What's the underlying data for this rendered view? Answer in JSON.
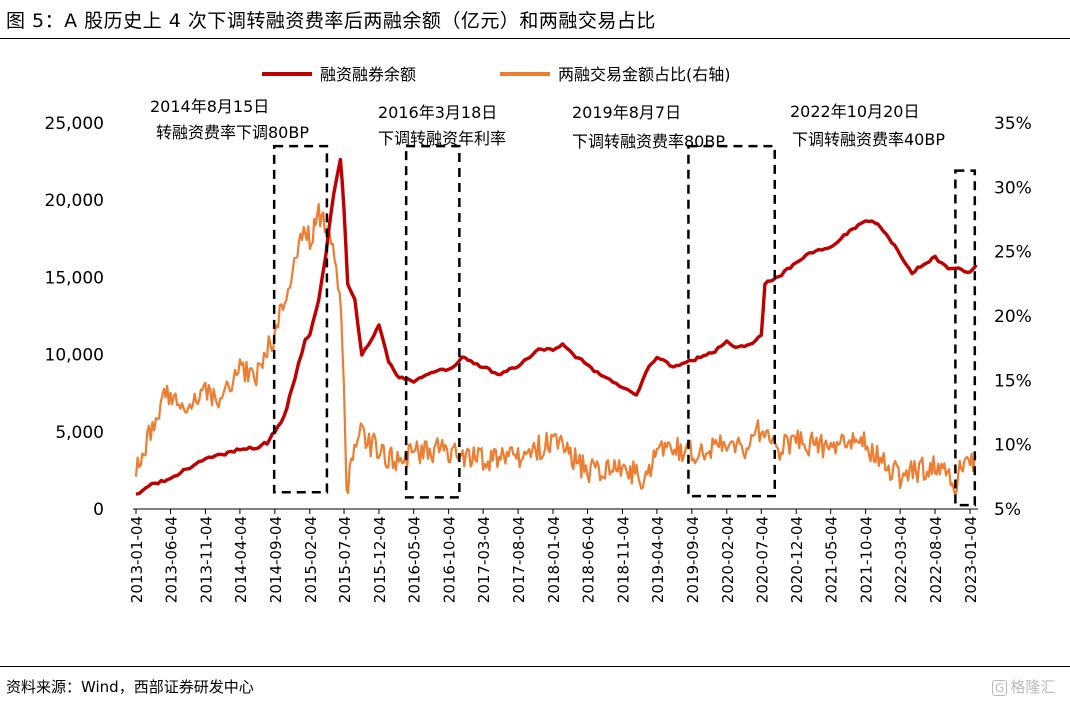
{
  "title": "图 5：A 股历史上 4 次下调转融资费率后两融余额（亿元）和两融交易占比",
  "source": "资料来源：Wind，西部证券研发中心",
  "watermark": "格隆汇",
  "colors": {
    "financing": "#c00000",
    "share": "#ed7d31"
  },
  "chart_data": {
    "type": "line",
    "legend": {
      "position": "top",
      "entries": [
        "融资融券余额",
        "两融交易金额占比(右轴)"
      ]
    },
    "x_ticks": [
      "2013-01-04",
      "2013-06-04",
      "2013-11-04",
      "2014-04-04",
      "2014-09-04",
      "2015-02-04",
      "2015-07-04",
      "2015-12-04",
      "2016-05-04",
      "2016-10-04",
      "2017-03-04",
      "2017-08-04",
      "2018-01-04",
      "2018-06-04",
      "2018-11-04",
      "2019-04-04",
      "2019-09-04",
      "2020-02-04",
      "2020-07-04",
      "2020-12-04",
      "2021-05-04",
      "2021-10-04",
      "2022-03-04",
      "2022-08-04",
      "2023-01-04"
    ],
    "y_left": {
      "min": 0,
      "max": 25000,
      "ticks": [
        "0",
        "5,000",
        "10,000",
        "15,000",
        "20,000",
        "25,000"
      ]
    },
    "y_right": {
      "min": 5,
      "max": 35,
      "ticks": [
        "5%",
        "10%",
        "15%",
        "20%",
        "25%",
        "30%",
        "35%"
      ]
    },
    "grid": false,
    "annotations": [
      {
        "date_label": "2014年8月15日",
        "text": "转融资费率下调80BP",
        "window": [
          "2014-09-01",
          "2015-04-20"
        ],
        "share_range": [
          6.3,
          33.2
        ]
      },
      {
        "date_label": "2016年3月18日",
        "text": "下调转融资年利率",
        "window": [
          "2016-04-01",
          "2016-11-20"
        ],
        "share_range": [
          5.9,
          33.2
        ]
      },
      {
        "date_label": "2019年8月7日",
        "text": "下调转融资费率80BP",
        "window": [
          "2019-08-20",
          "2020-09-01"
        ],
        "share_range": [
          6.0,
          33.2
        ]
      },
      {
        "date_label": "2022年10月20日",
        "text": "下调转融资费率40BP",
        "window": [
          "2022-11-01",
          "2023-01-25"
        ],
        "share_range": [
          5.3,
          31.3
        ]
      }
    ],
    "series": [
      {
        "name": "融资融券余额",
        "axis": "left",
        "points": [
          [
            "2013-01-04",
            900
          ],
          [
            "2013-03-01",
            1500
          ],
          [
            "2013-06-04",
            2000
          ],
          [
            "2013-08-15",
            2600
          ],
          [
            "2013-11-04",
            3300
          ],
          [
            "2014-01-15",
            3500
          ],
          [
            "2014-04-04",
            3900
          ],
          [
            "2014-06-15",
            4000
          ],
          [
            "2014-08-01",
            4300
          ],
          [
            "2014-09-04",
            5000
          ],
          [
            "2014-10-15",
            6000
          ],
          [
            "2014-12-01",
            8500
          ],
          [
            "2015-01-15",
            11000
          ],
          [
            "2015-02-04",
            11300
          ],
          [
            "2015-03-15",
            13500
          ],
          [
            "2015-04-15",
            16500
          ],
          [
            "2015-05-20",
            20500
          ],
          [
            "2015-06-18",
            22700
          ],
          [
            "2015-07-04",
            19500
          ],
          [
            "2015-07-20",
            14500
          ],
          [
            "2015-08-20",
            13500
          ],
          [
            "2015-09-20",
            10000
          ],
          [
            "2015-11-01",
            11000
          ],
          [
            "2015-12-04",
            12000
          ],
          [
            "2016-01-15",
            9500
          ],
          [
            "2016-03-01",
            8500
          ],
          [
            "2016-05-04",
            8300
          ],
          [
            "2016-08-01",
            8900
          ],
          [
            "2016-10-04",
            9000
          ],
          [
            "2016-12-01",
            9800
          ],
          [
            "2017-03-04",
            9200
          ],
          [
            "2017-05-20",
            8700
          ],
          [
            "2017-08-04",
            9300
          ],
          [
            "2017-11-01",
            10300
          ],
          [
            "2018-01-04",
            10300
          ],
          [
            "2018-02-15",
            10700
          ],
          [
            "2018-04-01",
            10000
          ],
          [
            "2018-06-04",
            9400
          ],
          [
            "2018-08-01",
            8600
          ],
          [
            "2018-11-04",
            7900
          ],
          [
            "2019-01-04",
            7400
          ],
          [
            "2019-03-01",
            9300
          ],
          [
            "2019-04-04",
            9800
          ],
          [
            "2019-06-15",
            9200
          ],
          [
            "2019-09-04",
            9600
          ],
          [
            "2019-12-01",
            10100
          ],
          [
            "2020-02-04",
            10800
          ],
          [
            "2020-03-15",
            10500
          ],
          [
            "2020-05-15",
            10600
          ],
          [
            "2020-07-04",
            11300
          ],
          [
            "2020-07-20",
            14600
          ],
          [
            "2020-10-01",
            15200
          ],
          [
            "2020-12-04",
            16000
          ],
          [
            "2021-02-01",
            16600
          ],
          [
            "2021-05-04",
            17000
          ],
          [
            "2021-07-01",
            17700
          ],
          [
            "2021-09-01",
            18400
          ],
          [
            "2021-10-04",
            18600
          ],
          [
            "2021-11-15",
            18600
          ],
          [
            "2022-01-01",
            17800
          ],
          [
            "2022-03-04",
            16500
          ],
          [
            "2022-04-25",
            15300
          ],
          [
            "2022-06-15",
            15900
          ],
          [
            "2022-08-04",
            16300
          ],
          [
            "2022-10-01",
            15500
          ],
          [
            "2022-11-01",
            15600
          ],
          [
            "2023-01-04",
            15300
          ],
          [
            "2023-02-01",
            15800
          ]
        ]
      },
      {
        "name": "两融交易金额占比(右轴)",
        "axis": "right",
        "points": [
          [
            "2013-01-04",
            8.0
          ],
          [
            "2013-02-15",
            10.0
          ],
          [
            "2013-04-01",
            12.5
          ],
          [
            "2013-06-04",
            14.0
          ],
          [
            "2013-08-01",
            13.2
          ],
          [
            "2013-11-04",
            14.2
          ],
          [
            "2014-01-15",
            13.6
          ],
          [
            "2014-04-04",
            16.0
          ],
          [
            "2014-06-15",
            15.5
          ],
          [
            "2014-09-04",
            18.5
          ],
          [
            "2014-11-01",
            22.5
          ],
          [
            "2015-01-15",
            27.0
          ],
          [
            "2015-02-04",
            26.0
          ],
          [
            "2015-03-15",
            28.0
          ],
          [
            "2015-05-01",
            26.0
          ],
          [
            "2015-06-15",
            22.0
          ],
          [
            "2015-07-04",
            14.0
          ],
          [
            "2015-07-15",
            6.5
          ],
          [
            "2015-09-01",
            11.0
          ],
          [
            "2015-12-04",
            9.5
          ],
          [
            "2016-03-01",
            8.5
          ],
          [
            "2016-05-04",
            9.4
          ],
          [
            "2016-10-04",
            9.6
          ],
          [
            "2017-03-04",
            8.8
          ],
          [
            "2017-08-04",
            9.2
          ],
          [
            "2018-01-04",
            10.2
          ],
          [
            "2018-03-01",
            9.5
          ],
          [
            "2018-06-04",
            8.0
          ],
          [
            "2018-11-04",
            8.3
          ],
          [
            "2019-02-15",
            7.3
          ],
          [
            "2019-04-04",
            9.7
          ],
          [
            "2019-09-04",
            9.5
          ],
          [
            "2020-02-04",
            10.2
          ],
          [
            "2020-05-01",
            9.2
          ],
          [
            "2020-07-04",
            11.5
          ],
          [
            "2020-09-15",
            9.6
          ],
          [
            "2020-12-04",
            10.3
          ],
          [
            "2021-05-04",
            9.8
          ],
          [
            "2021-10-04",
            10.0
          ],
          [
            "2021-12-15",
            8.5
          ],
          [
            "2022-03-04",
            7.5
          ],
          [
            "2022-08-04",
            8.4
          ],
          [
            "2022-11-01",
            6.8
          ],
          [
            "2022-12-10",
            9.0
          ],
          [
            "2023-01-04",
            8.5
          ],
          [
            "2023-02-01",
            9.0
          ]
        ]
      }
    ]
  }
}
